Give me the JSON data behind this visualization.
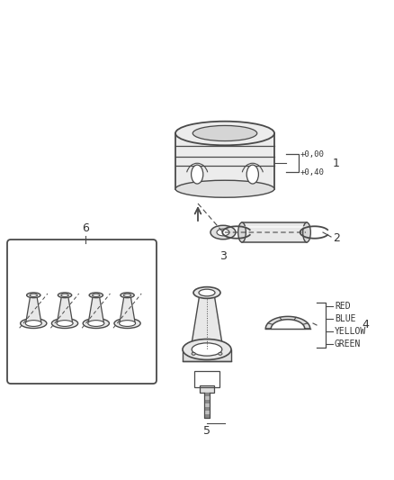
{
  "bg_color": "#ffffff",
  "lc": "#4a4a4a",
  "tc": "#333333",
  "fig_width": 4.38,
  "fig_height": 5.33,
  "dpi": 100,
  "color_labels": [
    "RED",
    "BLUE",
    "YELLOW",
    "GREEN"
  ],
  "bracket1_labels": [
    "+0,00",
    "+0,40"
  ],
  "item_labels": [
    "1",
    "2",
    "3",
    "4",
    "5",
    "6"
  ]
}
